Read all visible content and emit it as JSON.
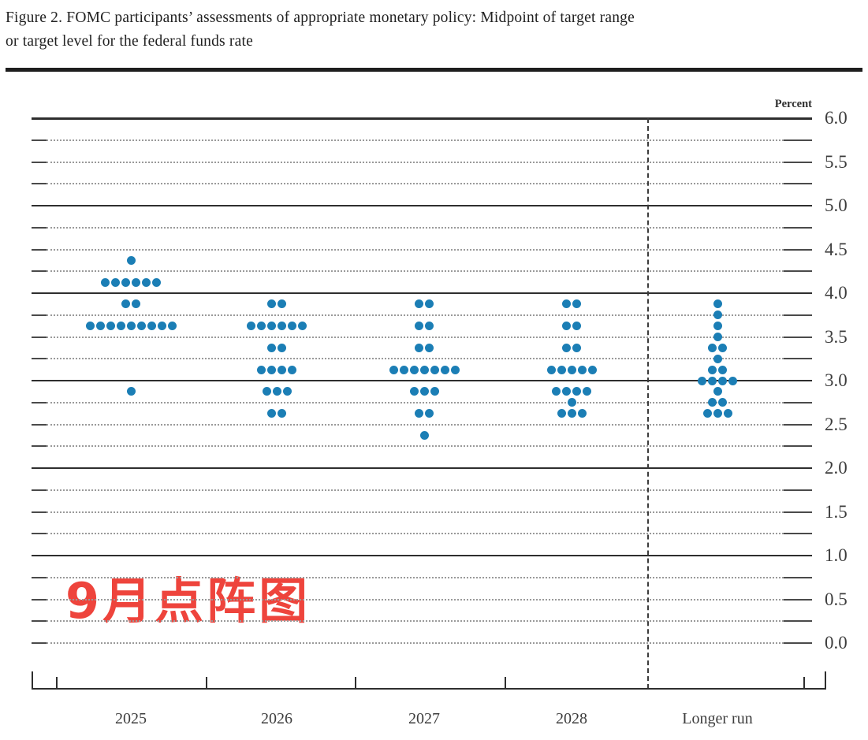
{
  "header": {
    "title_line1": "Figure 2. FOMC participants’ assessments of appropriate monetary policy: Midpoint of target range",
    "title_line2": "or target level for the federal funds rate"
  },
  "annotation": {
    "text": "9月点阵图",
    "color": "#ee443c"
  },
  "chart_data": {
    "type": "scatter",
    "title": "FOMC participants’ assessments of appropriate monetary policy: Midpoint of target range or target level for the federal funds rate",
    "unit_label": "Percent",
    "ylabel": "Percent",
    "ylim": [
      0.0,
      6.0
    ],
    "y_tick_step": 0.25,
    "y_label_step": 0.5,
    "y_solid_lines": [
      6.0,
      5.0,
      4.0,
      3.0,
      2.0,
      1.0
    ],
    "y_tick_labels": [
      "6.0",
      "5.5",
      "5.0",
      "4.5",
      "4.0",
      "3.5",
      "3.0",
      "2.5",
      "2.0",
      "1.5",
      "1.0",
      "0.5",
      "0.0"
    ],
    "grid": true,
    "dot_color": "#1b7eb5",
    "dashed_divider_before_category": "Longer run",
    "categories": [
      "2025",
      "2026",
      "2027",
      "2028",
      "Longer run"
    ],
    "series": [
      {
        "category": "2025",
        "dots": [
          {
            "rate": 4.375,
            "count": 1
          },
          {
            "rate": 4.125,
            "count": 6
          },
          {
            "rate": 3.875,
            "count": 2
          },
          {
            "rate": 3.625,
            "count": 9
          },
          {
            "rate": 2.875,
            "count": 1
          }
        ]
      },
      {
        "category": "2026",
        "dots": [
          {
            "rate": 3.875,
            "count": 2
          },
          {
            "rate": 3.625,
            "count": 6
          },
          {
            "rate": 3.375,
            "count": 2
          },
          {
            "rate": 3.125,
            "count": 4
          },
          {
            "rate": 2.875,
            "count": 3
          },
          {
            "rate": 2.625,
            "count": 2
          }
        ]
      },
      {
        "category": "2027",
        "dots": [
          {
            "rate": 3.875,
            "count": 2
          },
          {
            "rate": 3.625,
            "count": 2
          },
          {
            "rate": 3.375,
            "count": 2
          },
          {
            "rate": 3.125,
            "count": 7
          },
          {
            "rate": 2.875,
            "count": 3
          },
          {
            "rate": 2.625,
            "count": 2
          },
          {
            "rate": 2.375,
            "count": 1
          }
        ]
      },
      {
        "category": "2028",
        "dots": [
          {
            "rate": 3.875,
            "count": 2
          },
          {
            "rate": 3.625,
            "count": 2
          },
          {
            "rate": 3.375,
            "count": 2
          },
          {
            "rate": 3.125,
            "count": 5
          },
          {
            "rate": 2.875,
            "count": 4
          },
          {
            "rate": 2.75,
            "count": 1
          },
          {
            "rate": 2.625,
            "count": 3
          }
        ]
      },
      {
        "category": "Longer run",
        "dots": [
          {
            "rate": 3.875,
            "count": 1
          },
          {
            "rate": 3.75,
            "count": 1
          },
          {
            "rate": 3.625,
            "count": 1
          },
          {
            "rate": 3.5,
            "count": 1
          },
          {
            "rate": 3.375,
            "count": 2
          },
          {
            "rate": 3.25,
            "count": 1
          },
          {
            "rate": 3.125,
            "count": 2
          },
          {
            "rate": 3.0,
            "count": 4
          },
          {
            "rate": 2.875,
            "count": 1
          },
          {
            "rate": 2.75,
            "count": 2
          },
          {
            "rate": 2.625,
            "count": 3
          }
        ]
      }
    ]
  }
}
